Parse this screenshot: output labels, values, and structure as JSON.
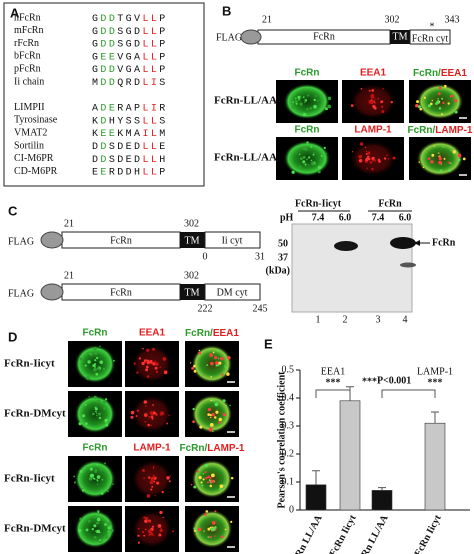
{
  "panel_a": {
    "label": "A",
    "rows": [
      {
        "name": "hFcRn",
        "seq": "GDDTGVLLP"
      },
      {
        "name": "mFcRn",
        "seq": "GDDSGDLLP"
      },
      {
        "name": "rFcRn",
        "seq": "GDDSGDLLP"
      },
      {
        "name": "bFcRn",
        "seq": "GEEVGALLP"
      },
      {
        "name": "pFcRn",
        "seq": "GDDVGALLP"
      },
      {
        "name": "Ii chain",
        "seq": "MDDQRDLIS"
      },
      {
        "name": "LIMPII",
        "seq": "ADERAPLIR"
      },
      {
        "name": "Tyrosinase",
        "seq": "KDHYSSLLS"
      },
      {
        "name": "VMAT2",
        "seq": "KEEKMAILM"
      },
      {
        "name": "Sortilin",
        "seq": "DDSDEDLLE"
      },
      {
        "name": "CI-M6PR",
        "seq": "DDSDEDLLH"
      },
      {
        "name": "CD-M6PR",
        "seq": "EERDDHLLP"
      }
    ]
  },
  "panel_b": {
    "label": "B",
    "construct": {
      "tag": "FLAG",
      "start": "21",
      "domain": "FcRn",
      "tm": "TM",
      "tail": "FcRn cyt",
      "tm_start": "302",
      "end": "343",
      "mutation": "*"
    },
    "rows": [
      {
        "label": "FcRn-LL/AA",
        "channels": [
          "FcRn",
          "EEA1",
          "FcRn/EEA1"
        ]
      },
      {
        "label": "FcRn-LL/AA",
        "channels": [
          "FcRn",
          "LAMP-1",
          "FcRn/LAMP-1"
        ]
      }
    ]
  },
  "panel_c": {
    "label": "C",
    "constructs": [
      {
        "tag": "FLAG",
        "start": "21",
        "domain": "FcRn",
        "tm": "TM",
        "tail": "Ii cyt",
        "tm_start": "302",
        "tail_start": "0",
        "tail_end": "31"
      },
      {
        "tag": "FLAG",
        "start": "21",
        "domain": "FcRn",
        "tm": "TM",
        "tail": "DM cyt",
        "tm_start": "302",
        "tail_start": "222",
        "tail_end": "245"
      }
    ],
    "blot": {
      "groups": [
        "FcRn-Iicyt",
        "FcRn"
      ],
      "ph_label": "pH",
      "ph": [
        "7.4",
        "6.0",
        "7.4",
        "6.0"
      ],
      "markers": [
        "50",
        "37"
      ],
      "unit": "(kDa)",
      "band_label": "FcRn",
      "lanes": [
        "1",
        "2",
        "3",
        "4"
      ]
    }
  },
  "panel_d": {
    "label": "D",
    "blocks": [
      {
        "channels": [
          "FcRn",
          "EEA1",
          "FcRn/EEA1"
        ],
        "rows": [
          "FcRn-Iicyt",
          "FcRn-DMcyt"
        ]
      },
      {
        "channels": [
          "FcRn",
          "LAMP-1",
          "FcRn/LAMP-1"
        ],
        "rows": [
          "FcRn-Iicyt",
          "FcRn-DMcyt"
        ]
      }
    ]
  },
  "chart_data": {
    "type": "bar",
    "label": "E",
    "ylabel": "Pearson's correlation coefficient",
    "categories": [
      "FcRn LL/AA",
      "FcRn Iicyt",
      "FcRn LL/AA",
      "FcRn Iicyt"
    ],
    "values": [
      0.09,
      0.39,
      0.07,
      0.31
    ],
    "errors": [
      0.05,
      0.05,
      0.01,
      0.04
    ],
    "colors": [
      "#111111",
      "#c8c8c8",
      "#111111",
      "#c8c8c8"
    ],
    "ylim": [
      0,
      0.5
    ],
    "yticks": [
      0,
      0.1,
      0.2,
      0.3,
      0.4,
      0.5
    ],
    "groups": [
      "EEA1",
      "LAMP-1"
    ],
    "group_stars": [
      "***",
      "***"
    ],
    "legend_stars": "***",
    "legend_text": "P<0.001"
  }
}
